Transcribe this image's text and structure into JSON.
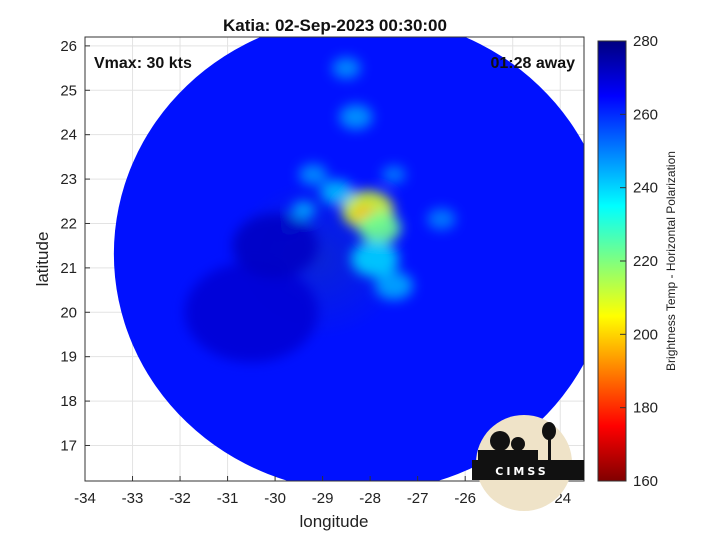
{
  "chart_data": {
    "type": "heatmap",
    "title": "Katia: 02-Sep-2023 00:30:00",
    "xlabel": "longitude",
    "ylabel": "latitude",
    "xlim": [
      -34,
      -23.5
    ],
    "ylim": [
      16.2,
      26.2
    ],
    "xticks": [
      -34,
      -33,
      -32,
      -31,
      -30,
      -29,
      -28,
      -27,
      -26,
      -25,
      -24
    ],
    "yticks": [
      17,
      18,
      19,
      20,
      21,
      22,
      23,
      24,
      25,
      26
    ],
    "grid": true,
    "colorbar": {
      "label": "Brightness Temp - Horizontal Polarization",
      "range": [
        160,
        280
      ],
      "ticks": [
        160,
        180,
        200,
        220,
        240,
        260,
        280
      ],
      "colormap": "jet"
    },
    "annotations": {
      "vmax": "Vmax: 30 kts",
      "time_away": "01:28 away"
    },
    "center_lon": -29.1,
    "center_lat": 21.2,
    "background_temp": 263,
    "features": [
      {
        "lon": -28.05,
        "lat": 22.3,
        "temp": 210,
        "spread": 0.55
      },
      {
        "lon": -28.1,
        "lat": 22.2,
        "temp": 196,
        "spread": 0.25
      },
      {
        "lon": -27.8,
        "lat": 21.9,
        "temp": 222,
        "spread": 0.45
      },
      {
        "lon": -27.9,
        "lat": 21.2,
        "temp": 240,
        "spread": 0.5
      },
      {
        "lon": -27.5,
        "lat": 20.6,
        "temp": 245,
        "spread": 0.4
      },
      {
        "lon": -28.7,
        "lat": 22.7,
        "temp": 243,
        "spread": 0.35
      },
      {
        "lon": -29.4,
        "lat": 22.3,
        "temp": 245,
        "spread": 0.25
      },
      {
        "lon": -29.7,
        "lat": 21.9,
        "temp": 242,
        "spread": 0.2
      },
      {
        "lon": -29.2,
        "lat": 23.1,
        "temp": 248,
        "spread": 0.3
      },
      {
        "lon": -28.3,
        "lat": 24.4,
        "temp": 247,
        "spread": 0.35
      },
      {
        "lon": -28.5,
        "lat": 25.5,
        "temp": 248,
        "spread": 0.3
      },
      {
        "lon": -27.5,
        "lat": 23.1,
        "temp": 250,
        "spread": 0.25
      },
      {
        "lon": -26.5,
        "lat": 22.1,
        "temp": 250,
        "spread": 0.3
      },
      {
        "lon": -30.5,
        "lat": 20.0,
        "temp": 270,
        "spread": 1.4
      },
      {
        "lon": -30.0,
        "lat": 21.5,
        "temp": 272,
        "spread": 0.9
      }
    ]
  },
  "logo": {
    "text": "CIMSS"
  }
}
